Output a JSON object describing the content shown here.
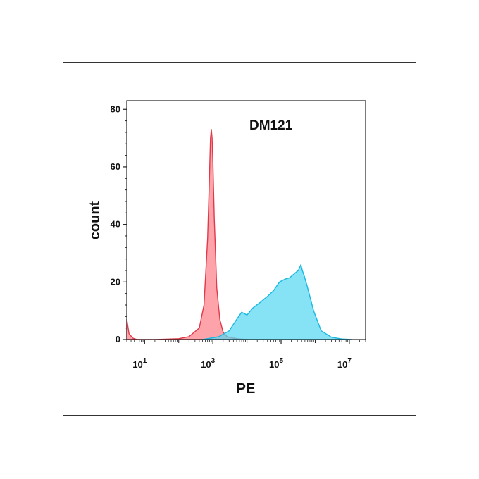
{
  "chart_data": {
    "type": "area",
    "title": "",
    "annotation": "DM121",
    "xlabel": "PE",
    "ylabel": "count",
    "x_scale": "log",
    "xlim": [
      3,
      30000000
    ],
    "ylim": [
      0,
      83
    ],
    "grid": false,
    "legend": "none",
    "x_ticks": [
      {
        "base": "10",
        "exp": "1"
      },
      {
        "base": "10",
        "exp": "3"
      },
      {
        "base": "10",
        "exp": "5"
      },
      {
        "base": "10",
        "exp": "7"
      }
    ],
    "y_ticks": [
      "0",
      "20",
      "40",
      "60",
      "80"
    ],
    "series": [
      {
        "color": "#ff7f8a",
        "stroke": "#e03a4a",
        "x": [
          3,
          3.5,
          4.5,
          6,
          20,
          100,
          200,
          400,
          550,
          700,
          800,
          850,
          900,
          950,
          1000,
          1100,
          1300,
          1600,
          2000,
          2600,
          4000,
          6000,
          10000
        ],
        "y": [
          7,
          2,
          0.5,
          0,
          0,
          0.3,
          1,
          4,
          12,
          35,
          58,
          70,
          73,
          70,
          62,
          42,
          18,
          7,
          2.5,
          1,
          0.5,
          0.2,
          0
        ]
      },
      {
        "color": "#58d8f2",
        "stroke": "#1ab8e0",
        "x": [
          500,
          1500,
          3000,
          5000,
          7000,
          10000,
          15000,
          25000,
          40000,
          60000,
          90000,
          130000,
          180000,
          250000,
          320000,
          380000,
          420000,
          480000,
          600000,
          900000,
          1500000,
          3000000,
          6000000,
          12000000
        ],
        "y": [
          0,
          1,
          3,
          7,
          9.5,
          8.5,
          11,
          13,
          15,
          17,
          20,
          21,
          21.5,
          23,
          24,
          26,
          24,
          22,
          18,
          10,
          3,
          0.8,
          0.2,
          0
        ]
      }
    ]
  }
}
